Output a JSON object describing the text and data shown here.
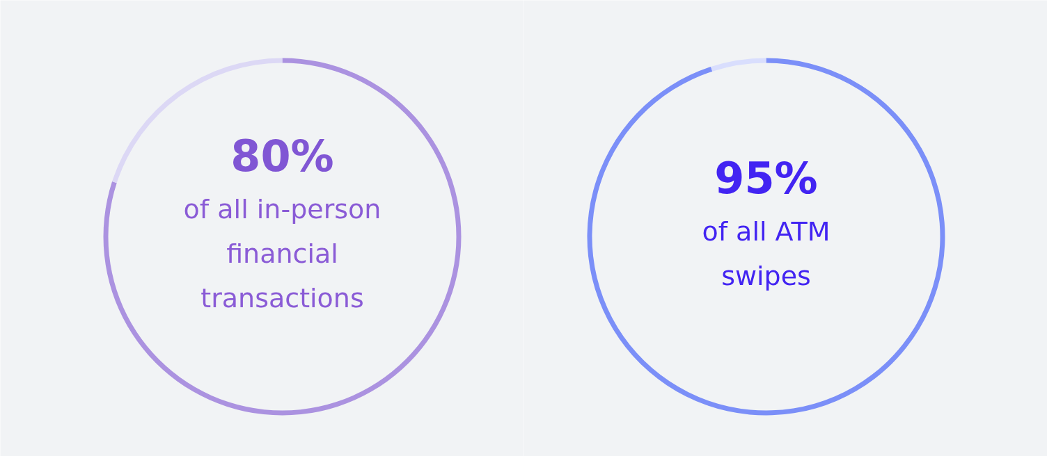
{
  "chart_data": [
    {
      "type": "donut",
      "categories": [
        null,
        null
      ],
      "values": [
        80,
        20
      ],
      "colors": [
        "#ab92e0",
        "#dcd8f5"
      ],
      "value_labels": [
        "80%",
        null
      ],
      "annotations": [
        "of all in-person financial transactions"
      ]
    },
    {
      "type": "donut",
      "categories": [
        null,
        null
      ],
      "values": [
        95,
        5
      ],
      "colors": [
        "#7b8ff8",
        "#d9defd"
      ],
      "value_labels": [
        "95%",
        null
      ],
      "annotations": [
        "of all ATM swipes"
      ]
    }
  ]
}
